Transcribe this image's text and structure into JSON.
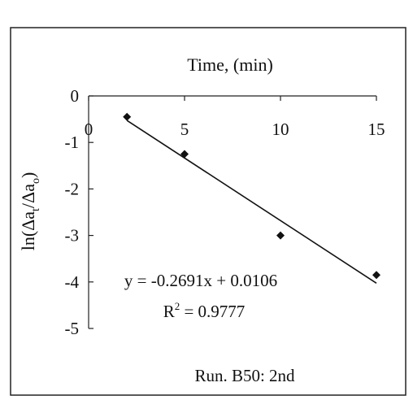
{
  "chart_data": {
    "type": "scatter",
    "xlabel": "Time, (min)",
    "ylabel_main": "ln(Δa",
    "ylabel_sub1": "t",
    "ylabel_mid": "/Δa",
    "ylabel_sub2": "o",
    "ylabel_close": ")",
    "xlim": [
      0,
      15
    ],
    "ylim": [
      -5,
      0
    ],
    "x_ticks": [
      0,
      5,
      10,
      15
    ],
    "x_tick_labels": [
      "0",
      "5",
      "10",
      "15"
    ],
    "y_ticks": [
      0,
      -1,
      -2,
      -3,
      -4,
      -5
    ],
    "y_tick_labels": [
      "0",
      "-1",
      "-2",
      "-3",
      "-4",
      "-5"
    ],
    "grid": false,
    "legend": "none",
    "x_axis_position": "top",
    "series": [
      {
        "points": [
          {
            "x": 2,
            "y": -0.45
          },
          {
            "x": 5,
            "y": -1.25
          },
          {
            "x": 10,
            "y": -3.0
          },
          {
            "x": 15,
            "y": -3.85
          }
        ],
        "marker": "diamond",
        "color": "#111111"
      }
    ],
    "trendline": {
      "slope": -0.2691,
      "intercept": 0.0106,
      "x_range": [
        2,
        15
      ],
      "color": "#111111"
    },
    "equation_text": "y = -0.2691x + 0.0106",
    "r2_prefix": "R",
    "r2_sup": "2",
    "r2_value": " = 0.9777",
    "caption": "Run. B50: 2nd"
  }
}
